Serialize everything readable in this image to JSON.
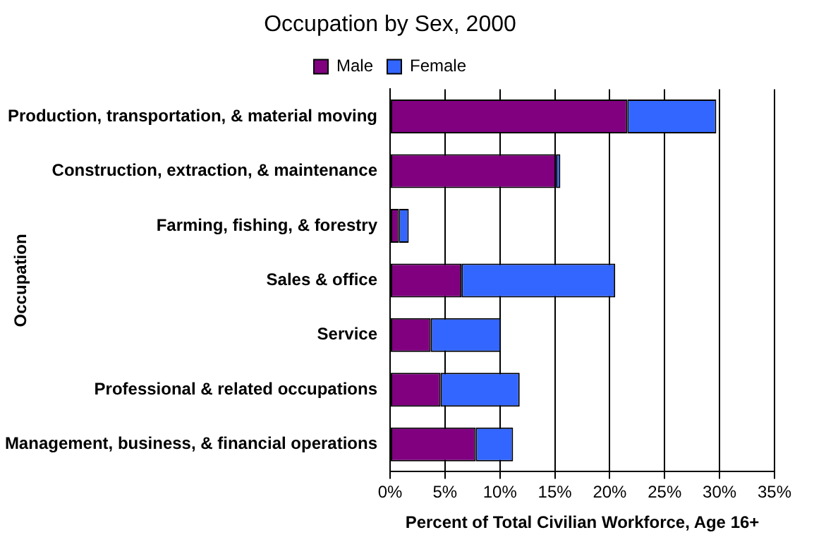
{
  "chart_data": {
    "type": "bar",
    "title": "Occupation by Sex, 2000",
    "orientation": "horizontal",
    "stacked": true,
    "xlabel": "Percent of Total Civilian Workforce, Age 16+",
    "ylabel": "Occupation",
    "categories": [
      "Production, transportation, & material moving",
      "Construction, extraction, & maintenance",
      "Farming, fishing, & forestry",
      "Sales & office",
      "Service",
      "Professional & related occupations",
      "Management, business, & financial operations"
    ],
    "series": [
      {
        "name": "Male",
        "color": "#800080",
        "values": [
          21.6,
          15.1,
          0.8,
          6.5,
          3.7,
          4.6,
          7.8
        ]
      },
      {
        "name": "Female",
        "color": "#3366ff",
        "values": [
          8.1,
          0.4,
          0.9,
          14.0,
          6.4,
          7.2,
          3.4
        ]
      }
    ],
    "xlim": [
      0,
      35
    ],
    "xticks": [
      {
        "value": 0,
        "label": "0%"
      },
      {
        "value": 5,
        "label": "5%"
      },
      {
        "value": 10,
        "label": "10%"
      },
      {
        "value": 15,
        "label": "15%"
      },
      {
        "value": 20,
        "label": "20%"
      },
      {
        "value": 25,
        "label": "25%"
      },
      {
        "value": 30,
        "label": "30%"
      },
      {
        "value": 35,
        "label": "35%"
      }
    ],
    "grid": "x",
    "legend": "top"
  }
}
